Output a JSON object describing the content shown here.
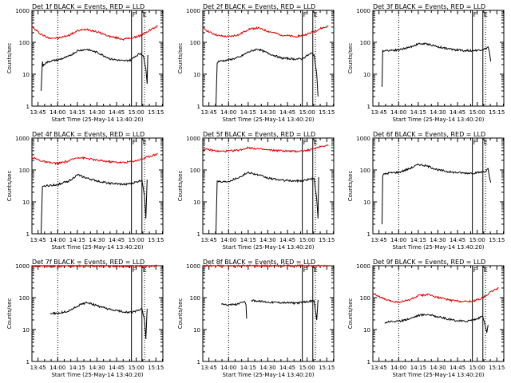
{
  "figure": {
    "background": "#ffffff",
    "axis_color": "#000000",
    "events_color": "#000000",
    "lld_color": "#e00000"
  },
  "chart_data": [
    {
      "type": "line",
      "panel": "Det 1f",
      "title": "Det 1f BLACK = Events, RED = LLD",
      "xlabel": "Start Time (25-May-14 13:40:20)",
      "ylabel": "Counts/sec",
      "x_unit": "minutes since 13:40:20",
      "xticks": [
        "13:45",
        "14:00",
        "14:15",
        "14:30",
        "14:45",
        "15:00",
        "15:15"
      ],
      "yticks": [
        "1",
        "10",
        "100",
        "1000"
      ],
      "yscale": "log",
      "ylim": [
        1,
        1000
      ],
      "xlim": [
        0,
        100
      ],
      "markers": [
        {
          "label": "F",
          "x": 76
        },
        {
          "label": "E",
          "x": 84
        }
      ],
      "dotted_lines_x": [
        19.7,
        86
      ],
      "solid_lines_x": [
        76,
        84
      ],
      "series": [
        {
          "name": "LLD",
          "color": "#e00000",
          "x": [
            0,
            6,
            12,
            20,
            28,
            35,
            42,
            50,
            60,
            70,
            78,
            84,
            90,
            96
          ],
          "y": [
            300,
            190,
            140,
            135,
            165,
            230,
            260,
            210,
            150,
            125,
            140,
            170,
            240,
            320
          ]
        },
        {
          "name": "Events",
          "color": "#000000",
          "x": [
            7,
            8,
            8.5,
            10,
            14,
            20,
            28,
            35,
            42,
            50,
            60,
            70,
            76,
            78,
            83,
            85,
            87,
            88,
            88.5
          ],
          "y": [
            3,
            25,
            18,
            22,
            26,
            28,
            36,
            55,
            60,
            48,
            30,
            26,
            28,
            35,
            45,
            38,
            15,
            5,
            40
          ]
        }
      ]
    },
    {
      "type": "line",
      "panel": "Det 2f",
      "title": "Det 2f BLACK = Events, RED = LLD",
      "xlabel": "Start Time (25-May-14 13:40:20)",
      "ylabel": "Counts/sec",
      "x_unit": "minutes since 13:40:20",
      "xticks": [
        "13:45",
        "14:00",
        "14:15",
        "14:30",
        "14:45",
        "15:00",
        "15:15"
      ],
      "yticks": [
        "1",
        "10",
        "100",
        "1000"
      ],
      "yscale": "log",
      "ylim": [
        1,
        1000
      ],
      "xlim": [
        0,
        100
      ],
      "markers": [
        {
          "label": "F",
          "x": 76
        },
        {
          "label": "E",
          "x": 84
        }
      ],
      "dotted_lines_x": [
        19.7,
        86
      ],
      "solid_lines_x": [
        76,
        84
      ],
      "series": [
        {
          "name": "LLD",
          "color": "#e00000",
          "x": [
            0,
            6,
            12,
            20,
            28,
            35,
            42,
            50,
            60,
            70,
            78,
            84,
            90,
            96
          ],
          "y": [
            280,
            200,
            160,
            150,
            175,
            260,
            280,
            220,
            170,
            150,
            170,
            210,
            270,
            320
          ]
        },
        {
          "name": "Events",
          "color": "#000000",
          "x": [
            10,
            11,
            12,
            14,
            20,
            28,
            35,
            42,
            50,
            60,
            70,
            76,
            78,
            83,
            85,
            87,
            88
          ],
          "y": [
            1,
            22,
            25,
            26,
            28,
            34,
            50,
            62,
            45,
            32,
            30,
            30,
            35,
            45,
            40,
            10,
            2
          ]
        }
      ]
    },
    {
      "type": "line",
      "panel": "Det 3f",
      "title": "Det 3f BLACK = Events, RED = LLD",
      "xlabel": "Start Time (25-May-14 13:40:20)",
      "ylabel": "Counts/sec",
      "x_unit": "minutes since 13:40:20",
      "xticks": [
        "13:45",
        "14:00",
        "14:15",
        "14:30",
        "14:45",
        "15:00",
        "15:15"
      ],
      "yticks": [
        "1",
        "10",
        "100",
        "1000"
      ],
      "yscale": "log",
      "ylim": [
        1,
        1000
      ],
      "xlim": [
        0,
        100
      ],
      "markers": [
        {
          "label": "F",
          "x": 76
        },
        {
          "label": "E",
          "x": 84
        }
      ],
      "dotted_lines_x": [
        19.7,
        86
      ],
      "solid_lines_x": [
        76,
        84
      ],
      "series": [
        {
          "name": "Events",
          "color": "#000000",
          "x": [
            7,
            7.5,
            8,
            12,
            20,
            28,
            35,
            42,
            50,
            60,
            70,
            76,
            80,
            86,
            88,
            89,
            90
          ],
          "y": [
            4,
            55,
            55,
            56,
            58,
            70,
            90,
            88,
            72,
            60,
            55,
            55,
            56,
            62,
            72,
            50,
            25
          ]
        }
      ]
    },
    {
      "type": "line",
      "panel": "Det 4f",
      "title": "Det 4f BLACK = Events, RED = LLD",
      "xlabel": "Start Time (25-May-14 13:40:20)",
      "ylabel": "Counts/sec",
      "x_unit": "minutes since 13:40:20",
      "xticks": [
        "13:45",
        "14:00",
        "14:15",
        "14:30",
        "14:45",
        "15:00",
        "15:15"
      ],
      "yticks": [
        "1",
        "10",
        "100",
        "1000"
      ],
      "yscale": "log",
      "ylim": [
        1,
        1000
      ],
      "xlim": [
        0,
        100
      ],
      "markers": [
        {
          "label": "F",
          "x": 76
        },
        {
          "label": "E",
          "x": 84
        }
      ],
      "dotted_lines_x": [
        19.7,
        86
      ],
      "solid_lines_x": [
        76,
        84
      ],
      "series": [
        {
          "name": "LLD",
          "color": "#e00000",
          "x": [
            0,
            6,
            12,
            20,
            28,
            35,
            42,
            50,
            60,
            70,
            78,
            84,
            90,
            96
          ],
          "y": [
            250,
            200,
            170,
            160,
            190,
            250,
            230,
            200,
            180,
            170,
            190,
            220,
            270,
            320
          ]
        },
        {
          "name": "Events",
          "color": "#000000",
          "x": [
            7,
            8,
            9,
            12,
            20,
            28,
            35,
            42,
            50,
            60,
            70,
            76,
            80,
            84,
            86,
            87,
            88
          ],
          "y": [
            1,
            30,
            32,
            32,
            35,
            45,
            70,
            55,
            45,
            38,
            35,
            38,
            42,
            48,
            15,
            3,
            50
          ]
        }
      ]
    },
    {
      "type": "line",
      "panel": "Det 5f",
      "title": "Det 5f BLACK = Events, RED = LLD",
      "xlabel": "Start Time (25-May-14 13:40:20)",
      "ylabel": "Counts/sec",
      "x_unit": "minutes since 13:40:20",
      "xticks": [
        "13:45",
        "14:00",
        "14:15",
        "14:30",
        "14:45",
        "15:00",
        "15:15"
      ],
      "yticks": [
        "1",
        "10",
        "100",
        "1000"
      ],
      "yscale": "log",
      "ylim": [
        1,
        1000
      ],
      "xlim": [
        0,
        100
      ],
      "markers": [
        {
          "label": "F",
          "x": 76
        },
        {
          "label": "E",
          "x": 84
        }
      ],
      "dotted_lines_x": [
        19.7,
        86
      ],
      "solid_lines_x": [
        76,
        84
      ],
      "series": [
        {
          "name": "LLD",
          "color": "#e00000",
          "x": [
            0,
            6,
            12,
            20,
            28,
            35,
            42,
            50,
            60,
            70,
            78,
            84,
            90,
            96
          ],
          "y": [
            450,
            420,
            380,
            390,
            420,
            500,
            460,
            420,
            400,
            380,
            400,
            450,
            550,
            600
          ]
        },
        {
          "name": "Events",
          "color": "#000000",
          "x": [
            10,
            11,
            12,
            14,
            20,
            28,
            35,
            42,
            50,
            60,
            70,
            76,
            80,
            85,
            87,
            88,
            88.5
          ],
          "y": [
            1,
            45,
            45,
            42,
            45,
            60,
            85,
            70,
            55,
            48,
            45,
            46,
            50,
            55,
            12,
            3,
            60
          ]
        }
      ]
    },
    {
      "type": "line",
      "panel": "Det 6f",
      "title": "Det 6f BLACK = Events, RED = LLD",
      "xlabel": "Start Time (25-May-14 13:40:20)",
      "ylabel": "Counts/sec",
      "x_unit": "minutes since 13:40:20",
      "xticks": [
        "13:45",
        "14:00",
        "14:15",
        "14:30",
        "14:45",
        "15:00",
        "15:15"
      ],
      "yticks": [
        "1",
        "10",
        "100",
        "1000"
      ],
      "yscale": "log",
      "ylim": [
        1,
        1000
      ],
      "xlim": [
        0,
        100
      ],
      "markers": [
        {
          "label": "F",
          "x": 76
        },
        {
          "label": "E",
          "x": 84
        }
      ],
      "dotted_lines_x": [
        19.7,
        86
      ],
      "solid_lines_x": [
        76,
        84
      ],
      "series": [
        {
          "name": "Events",
          "color": "#000000",
          "x": [
            7,
            7.5,
            8,
            12,
            20,
            28,
            35,
            42,
            50,
            60,
            70,
            76,
            80,
            86,
            88,
            89,
            90
          ],
          "y": [
            2,
            65,
            72,
            80,
            85,
            110,
            150,
            130,
            100,
            85,
            80,
            80,
            82,
            90,
            110,
            60,
            40
          ]
        }
      ]
    },
    {
      "type": "line",
      "panel": "Det 7f",
      "title": "Det 7f BLACK = Events, RED = LLD",
      "xlabel": "Start Time (25-May-14 13:40:20)",
      "ylabel": "Counts/sec",
      "x_unit": "minutes since 13:40:20",
      "xticks": [
        "13:45",
        "14:00",
        "14:15",
        "14:30",
        "14:45",
        "15:00",
        "15:15"
      ],
      "yticks": [
        "1",
        "10",
        "100",
        "1000"
      ],
      "yscale": "log",
      "ylim": [
        1,
        1000
      ],
      "xlim": [
        0,
        100
      ],
      "markers": [
        {
          "label": "F",
          "x": 76
        },
        {
          "label": "E",
          "x": 84
        }
      ],
      "dotted_lines_x": [
        19.7,
        86
      ],
      "solid_lines_x": [
        76,
        84
      ],
      "series": [
        {
          "name": "LLD",
          "color": "#e00000",
          "x": [
            0,
            10,
            20,
            30,
            40,
            50,
            60,
            70,
            80,
            90,
            96
          ],
          "y": [
            980,
            960,
            950,
            970,
            990,
            980,
            960,
            950,
            960,
            980,
            990
          ]
        },
        {
          "name": "Events",
          "color": "#000000",
          "x": [
            14,
            20,
            28,
            35,
            42,
            50,
            60,
            70,
            76,
            80,
            84,
            86,
            87,
            88
          ],
          "y": [
            32,
            32,
            38,
            55,
            72,
            55,
            42,
            36,
            34,
            38,
            45,
            20,
            5,
            45
          ]
        }
      ]
    },
    {
      "type": "line",
      "panel": "Det 8f",
      "title": "Det 8f BLACK = Events, RED = LLD",
      "xlabel": "Start Time (25-May-14 13:40:20)",
      "ylabel": "Counts/sec",
      "x_unit": "minutes since 13:40:20",
      "xticks": [
        "13:45",
        "14:00",
        "14:15",
        "14:30",
        "14:45",
        "15:00",
        "15:15"
      ],
      "yticks": [
        "1",
        "10",
        "100",
        "1000"
      ],
      "yscale": "log",
      "ylim": [
        1,
        1000
      ],
      "xlim": [
        0,
        100
      ],
      "markers": [
        {
          "label": "F",
          "x": 76
        },
        {
          "label": "E",
          "x": 84
        }
      ],
      "dotted_lines_x": [
        19.7,
        86
      ],
      "solid_lines_x": [
        76,
        84
      ],
      "series": [
        {
          "name": "LLD",
          "color": "#e00000",
          "x": [
            0,
            10,
            20,
            30,
            40,
            50,
            60,
            70,
            80,
            90,
            96
          ],
          "y": [
            1000,
            990,
            990,
            1000,
            1000,
            990,
            990,
            1000,
            990,
            990,
            1000
          ]
        },
        {
          "name": "Events",
          "color": "#000000",
          "x": [
            14,
            20,
            26,
            32,
            33,
            33.5
          ],
          "y": [
            65,
            60,
            62,
            75,
            60,
            22
          ]
        },
        {
          "name": "Events",
          "color": "#000000",
          "x": [
            37,
            42,
            50,
            60,
            70,
            76,
            80,
            85,
            87,
            88
          ],
          "y": [
            82,
            78,
            72,
            70,
            68,
            70,
            75,
            80,
            20,
            85
          ]
        }
      ]
    },
    {
      "type": "line",
      "panel": "Det 9f",
      "title": "Det 9f BLACK = Events, RED = LLD",
      "xlabel": "Start Time (25-May-14 13:40:20)",
      "ylabel": "Counts/sec",
      "x_unit": "minutes since 13:40:20",
      "xticks": [
        "13:45",
        "14:00",
        "14:15",
        "14:30",
        "14:45",
        "15:00",
        "15:15"
      ],
      "yticks": [
        "1",
        "10",
        "100",
        "1000"
      ],
      "yscale": "log",
      "ylim": [
        1,
        1000
      ],
      "xlim": [
        0,
        100
      ],
      "markers": [
        {
          "label": "F",
          "x": 76
        },
        {
          "label": "E",
          "x": 84
        }
      ],
      "dotted_lines_x": [
        19.7,
        86
      ],
      "solid_lines_x": [
        76,
        84
      ],
      "series": [
        {
          "name": "LLD",
          "color": "#e00000",
          "x": [
            0,
            6,
            12,
            20,
            28,
            35,
            42,
            50,
            60,
            70,
            78,
            84,
            90,
            96
          ],
          "y": [
            140,
            100,
            80,
            72,
            85,
            115,
            125,
            100,
            82,
            75,
            80,
            100,
            150,
            200
          ]
        },
        {
          "name": "Events",
          "color": "#000000",
          "x": [
            9,
            12,
            20,
            28,
            35,
            42,
            50,
            60,
            70,
            76,
            80,
            84,
            86,
            87,
            88
          ],
          "y": [
            16,
            18,
            18,
            22,
            28,
            30,
            25,
            20,
            18,
            20,
            22,
            26,
            12,
            8,
            14
          ]
        }
      ]
    }
  ]
}
